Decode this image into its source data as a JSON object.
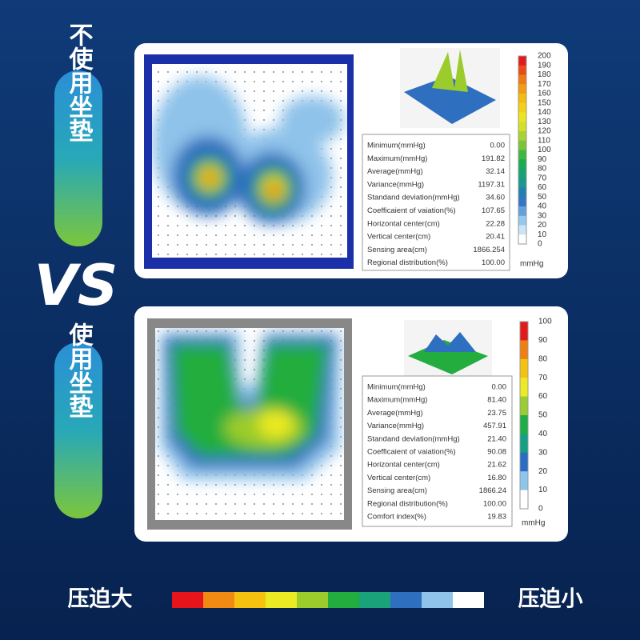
{
  "labels": {
    "without": "不使用坐垫",
    "vs": "VS",
    "with": "使用坐垫"
  },
  "panels": [
    {
      "colorbar_ticks": [
        200,
        190,
        180,
        170,
        160,
        150,
        140,
        130,
        120,
        110,
        100,
        90,
        80,
        70,
        60,
        50,
        40,
        30,
        20,
        10,
        0
      ],
      "unit": "mmHg",
      "stats": [
        [
          "Minimum(mmHg)",
          "0.00"
        ],
        [
          "Maximum(mmHg)",
          "191.82"
        ],
        [
          "Average(mmHg)",
          "32.14"
        ],
        [
          "Variance(mmHg)",
          "1197.31"
        ],
        [
          "Standand deviation(mmHg)",
          "34.60"
        ],
        [
          "Coefficaient of vaiation(%)",
          "107.65"
        ],
        [
          "Horizontal center(cm)",
          "22.28"
        ],
        [
          "Vertical center(cm)",
          "20.41"
        ],
        [
          "Sensing area(cm)",
          "1866.254"
        ],
        [
          "Regional distribution(%)",
          "100.00"
        ]
      ]
    },
    {
      "colorbar_ticks": [
        100,
        90,
        80,
        70,
        60,
        50,
        40,
        30,
        20,
        10,
        0
      ],
      "unit": "mmHg",
      "stats": [
        [
          "Minimum(mmHg)",
          "0.00"
        ],
        [
          "Maximum(mmHg)",
          "81.40"
        ],
        [
          "Average(mmHg)",
          "23.75"
        ],
        [
          "Variance(mmHg)",
          "457.91"
        ],
        [
          "Standand deviation(mmHg)",
          "21.40"
        ],
        [
          "Coefficaient of vaiation(%)",
          "90.08"
        ],
        [
          "Horizontal center(cm)",
          "21.62"
        ],
        [
          "Vertical center(cm)",
          "16.80"
        ],
        [
          "Sensing area(cm)",
          "1866.24"
        ],
        [
          "Regional distribution(%)",
          "100.00"
        ],
        [
          "Comfort index(%)",
          "19.83"
        ]
      ]
    }
  ],
  "legend": {
    "high": "压迫大",
    "low": "压迫小",
    "colors": [
      "#e8141c",
      "#f08a12",
      "#f5c30f",
      "#ecea23",
      "#9bcc2c",
      "#22ad3e",
      "#1aa37a",
      "#2f6fbf",
      "#8fc3ea",
      "#ffffff"
    ]
  }
}
